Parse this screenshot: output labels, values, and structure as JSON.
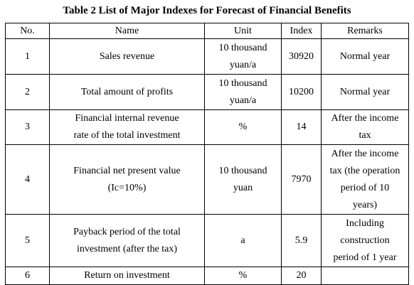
{
  "title": "Table 2 List of Major Indexes for Forecast of Financial Benefits",
  "columns": [
    "No.",
    "Name",
    "Unit",
    "Index",
    "Remarks"
  ],
  "rows": [
    {
      "no": "1",
      "name": [
        "Sales revenue"
      ],
      "unit": [
        "10 thousand",
        "yuan/a"
      ],
      "index": "30920",
      "remarks": [
        "Normal year"
      ]
    },
    {
      "no": "2",
      "name": [
        "Total amount of profits"
      ],
      "unit": [
        "10 thousand",
        "yuan/a"
      ],
      "index": "10200",
      "remarks": [
        "Normal year"
      ]
    },
    {
      "no": "3",
      "name": [
        "Financial internal revenue",
        "rate of the total investment"
      ],
      "unit": [
        "%"
      ],
      "index": "14",
      "remarks": [
        "After the income",
        "tax"
      ]
    },
    {
      "no": "4",
      "name": [
        "Financial net present value",
        "(Ic=10%)"
      ],
      "unit": [
        "10 thousand",
        "yuan"
      ],
      "index": "7970",
      "remarks": [
        "After the income",
        "tax (the operation",
        "period of 10",
        "years)"
      ]
    },
    {
      "no": "5",
      "name": [
        "Payback period of the total",
        "investment (after the tax)"
      ],
      "unit": [
        "a"
      ],
      "index": "5.9",
      "remarks": [
        "Including",
        "construction",
        "period of 1 year"
      ]
    },
    {
      "no": "6",
      "name": [
        "Return on investment"
      ],
      "unit": [
        "%"
      ],
      "index": "20",
      "remarks": [
        ""
      ]
    }
  ]
}
